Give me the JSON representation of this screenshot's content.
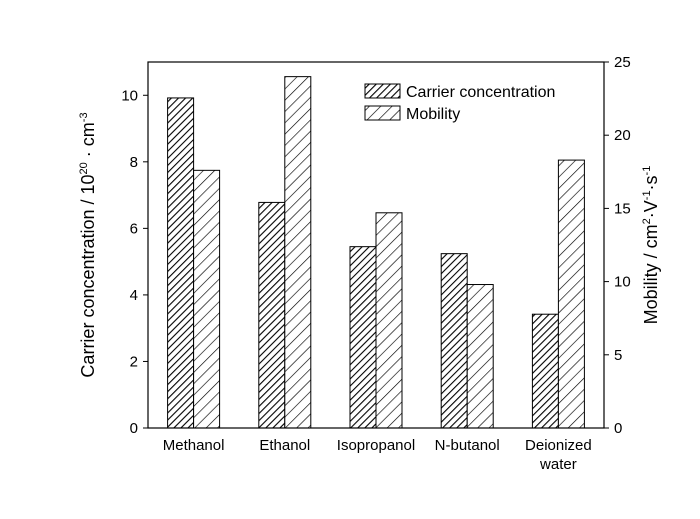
{
  "chart_data": {
    "type": "bar",
    "categories": [
      "Methanol",
      "Ethanol",
      "Isopropanol",
      "N-butanol",
      "Deionized water"
    ],
    "category_lines": [
      [
        "Methanol"
      ],
      [
        "Ethanol"
      ],
      [
        "Isopropanol"
      ],
      [
        "N-butanol"
      ],
      [
        "Deionized",
        "water"
      ]
    ],
    "series": [
      {
        "name": "Carrier concentration",
        "axis": "left",
        "pattern": "dense-hatch",
        "values": [
          9.92,
          6.78,
          5.45,
          5.24,
          3.42
        ]
      },
      {
        "name": "Mobility",
        "axis": "right",
        "pattern": "sparse-hatch",
        "values": [
          17.6,
          24.0,
          14.7,
          9.8,
          18.3
        ]
      }
    ],
    "left_axis": {
      "label_main": "Carrier concentration / 10",
      "label_sup1": "20",
      "label_mid": " · cm",
      "label_sup2": "-3",
      "ylim": [
        0,
        11
      ],
      "ticks": [
        0,
        2,
        4,
        6,
        8,
        10
      ],
      "tick_labels": [
        "0",
        "2",
        "4",
        "6",
        "8",
        "10"
      ]
    },
    "right_axis": {
      "label_main": "Mobility / cm",
      "label_sup1": "2",
      "label_mid": "·V",
      "label_sup2": "-1",
      "label_mid2": "·s",
      "label_sup3": "-1",
      "ylim": [
        0,
        25
      ],
      "ticks": [
        0,
        5,
        10,
        15,
        20,
        25
      ],
      "tick_labels": [
        "0",
        "5",
        "10",
        "15",
        "20",
        "25"
      ]
    },
    "legend": {
      "position": "top-right",
      "entries": [
        "Carrier concentration",
        "Mobility"
      ]
    },
    "grid": false,
    "colors": {
      "bar_fill": "#ffffff",
      "stroke": "#000000"
    }
  }
}
